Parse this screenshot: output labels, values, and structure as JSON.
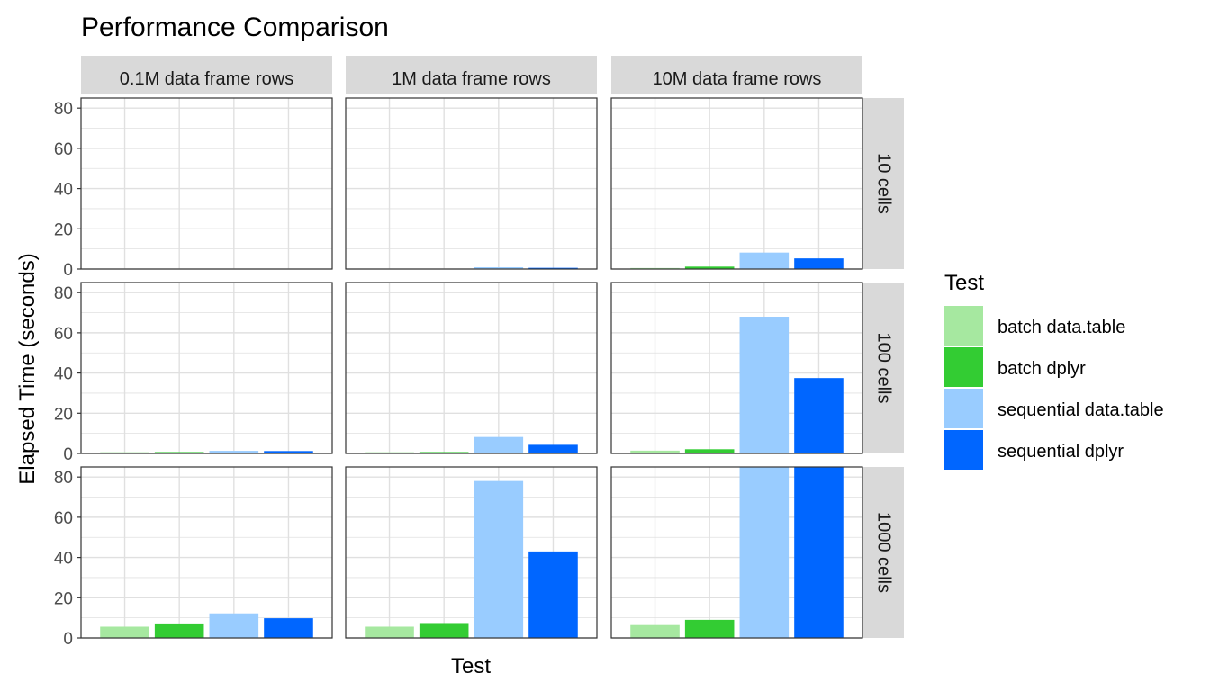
{
  "chart_data": {
    "type": "bar",
    "title": "Performance Comparison",
    "xlabel": "Test",
    "ylabel": "Elapsed Time (seconds)",
    "ylim": [
      0,
      85
    ],
    "yticks": [
      0,
      20,
      40,
      60,
      80
    ],
    "grid": true,
    "legend_position": "right",
    "legend_title": "Test",
    "categories": [
      "batch data.table",
      "batch dplyr",
      "sequential data.table",
      "sequential dplyr"
    ],
    "colors": [
      "#a6e8a0",
      "#33cc33",
      "#99ccff",
      "#0066ff"
    ],
    "col_facets": [
      "0.1M  data frame rows",
      "1M  data frame rows",
      "10M  data frame rows"
    ],
    "row_facets": [
      "10  cells",
      "100  cells",
      "1000  cells"
    ],
    "panels": [
      [
        [
          0.05,
          0.05,
          0.05,
          0.05
        ],
        [
          0.1,
          0.1,
          0.9,
          0.6
        ],
        [
          0.5,
          1.2,
          8.2,
          5.3
        ]
      ],
      [
        [
          0.6,
          0.7,
          1.3,
          1.2
        ],
        [
          0.6,
          0.7,
          8.2,
          4.3
        ],
        [
          1.4,
          2.1,
          68.0,
          37.5
        ]
      ],
      [
        [
          5.6,
          7.2,
          12.2,
          9.8
        ],
        [
          5.6,
          7.4,
          78.0,
          43.0
        ],
        [
          6.4,
          9.0,
          85.0,
          85.0
        ]
      ]
    ]
  }
}
